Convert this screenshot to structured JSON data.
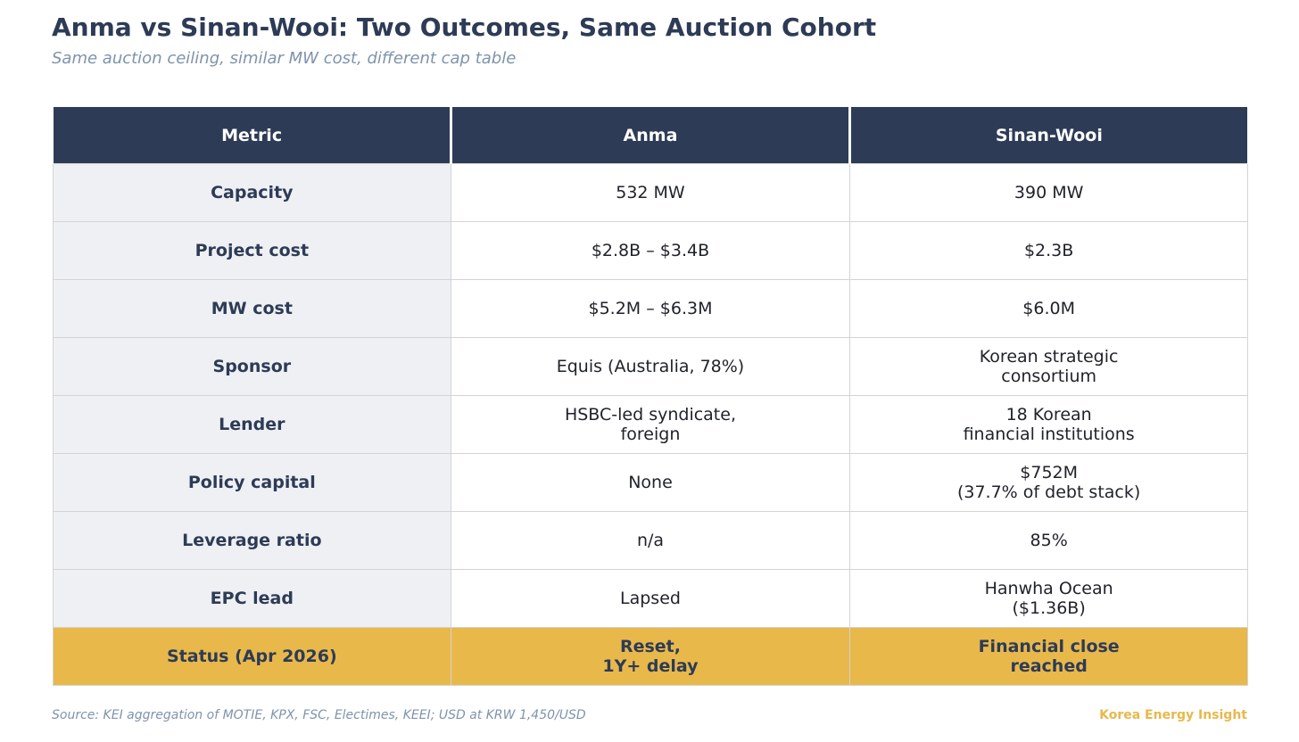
{
  "title": "Anma vs Sinan-Wooi: Two Outcomes, Same Auction Cohort",
  "subtitle": "Same auction ceiling, similar MW cost, different cap table",
  "source": "Source: KEI aggregation of MOTIE, KPX, FSC, Electimes, KEEI; USD at KRW 1,450/USD",
  "brand": "Korea Energy Insight",
  "colors": {
    "header_bg": "#2d3b56",
    "metric_bg": "#eef0f4",
    "highlight": "#e8b84b",
    "muted": "#7f93ad"
  },
  "chart_data": {
    "type": "table",
    "columns": [
      "Metric",
      "Anma",
      "Sinan-Wooi"
    ],
    "rows": [
      [
        "Capacity",
        "532 MW",
        "390 MW"
      ],
      [
        "Project cost",
        "$2.8B – $3.4B",
        "$2.3B"
      ],
      [
        "MW cost",
        "$5.2M – $6.3M",
        "$6.0M"
      ],
      [
        "Sponsor",
        "Equis (Australia, 78%)",
        "Korean strategic\nconsortium"
      ],
      [
        "Lender",
        "HSBC-led syndicate,\nforeign",
        "18 Korean\nfinancial institutions"
      ],
      [
        "Policy capital",
        "None",
        "$752M\n(37.7% of debt stack)"
      ],
      [
        "Leverage ratio",
        "n/a",
        "85%"
      ],
      [
        "EPC lead",
        "Lapsed",
        "Hanwha Ocean\n($1.36B)"
      ],
      [
        "Status (Apr 2026)",
        "Reset,\n1Y+ delay",
        "Financial close\nreached"
      ]
    ],
    "highlighted_row": "Status (Apr 2026)"
  }
}
